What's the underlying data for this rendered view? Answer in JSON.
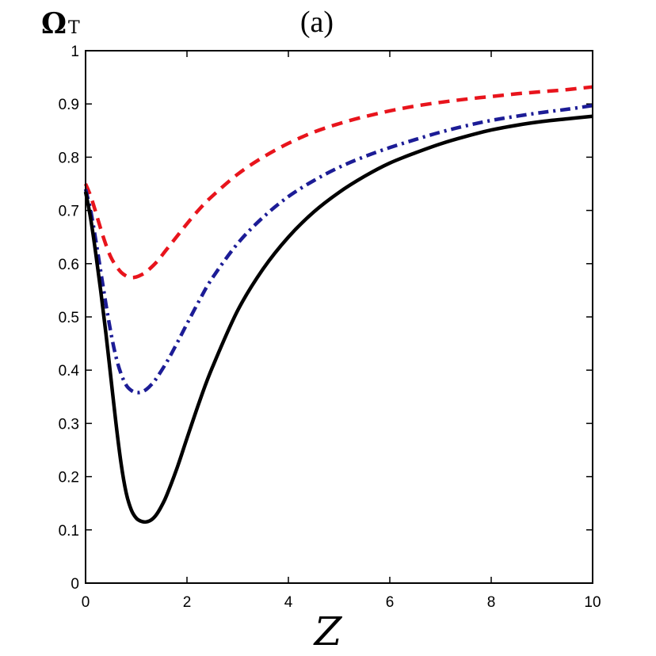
{
  "chart_data": {
    "type": "line",
    "panel_label": "(a)",
    "ylabel": {
      "main": "Ω",
      "sub": "T"
    },
    "xlabel": "Z",
    "xlim": [
      0,
      10
    ],
    "ylim": [
      0,
      1
    ],
    "x_ticks": [
      "0",
      "2",
      "4",
      "6",
      "8",
      "10"
    ],
    "y_ticks": [
      "0",
      "0.1",
      "0.2",
      "0.3",
      "0.4",
      "0.5",
      "0.6",
      "0.7",
      "0.8",
      "0.9",
      "1"
    ],
    "grid": false,
    "series": [
      {
        "color": "#e8141c",
        "style": "dashed",
        "x": [
          0,
          0.1,
          0.2,
          0.3,
          0.4,
          0.5,
          0.6,
          0.7,
          0.8,
          0.9,
          1.0,
          1.1,
          1.2,
          1.4,
          1.6,
          1.8,
          2.0,
          2.25,
          2.5,
          3.0,
          3.5,
          4.0,
          4.5,
          5.0,
          5.5,
          6.0,
          6.5,
          7.0,
          7.5,
          8.0,
          8.5,
          9.0,
          9.5,
          10.0
        ],
        "y": [
          0.75,
          0.727,
          0.697,
          0.665,
          0.636,
          0.612,
          0.596,
          0.584,
          0.577,
          0.574,
          0.575,
          0.579,
          0.585,
          0.603,
          0.627,
          0.651,
          0.675,
          0.703,
          0.727,
          0.768,
          0.8,
          0.826,
          0.847,
          0.863,
          0.876,
          0.887,
          0.896,
          0.903,
          0.909,
          0.914,
          0.919,
          0.923,
          0.927,
          0.932
        ]
      },
      {
        "color": "#1c1c96",
        "style": "dashdot",
        "x": [
          0,
          0.1,
          0.2,
          0.3,
          0.4,
          0.5,
          0.6,
          0.7,
          0.8,
          0.9,
          1.0,
          1.1,
          1.2,
          1.3,
          1.4,
          1.6,
          1.8,
          2.0,
          2.25,
          2.5,
          3.0,
          3.5,
          4.0,
          4.5,
          5.0,
          5.5,
          6.0,
          6.5,
          7.0,
          7.5,
          8.0,
          8.5,
          9.0,
          9.5,
          10.0
        ],
        "y": [
          0.74,
          0.7,
          0.645,
          0.585,
          0.525,
          0.47,
          0.425,
          0.393,
          0.372,
          0.362,
          0.358,
          0.359,
          0.364,
          0.373,
          0.385,
          0.415,
          0.45,
          0.487,
          0.532,
          0.573,
          0.638,
          0.687,
          0.726,
          0.756,
          0.781,
          0.801,
          0.818,
          0.833,
          0.847,
          0.859,
          0.869,
          0.877,
          0.884,
          0.89,
          0.897
        ]
      },
      {
        "color": "#000000",
        "style": "solid",
        "x": [
          0,
          0.1,
          0.2,
          0.3,
          0.4,
          0.5,
          0.6,
          0.7,
          0.8,
          0.9,
          1.0,
          1.1,
          1.2,
          1.3,
          1.4,
          1.5,
          1.6,
          1.8,
          2.0,
          2.25,
          2.5,
          3.0,
          3.5,
          4.0,
          4.5,
          5.0,
          5.5,
          6.0,
          6.5,
          7.0,
          7.5,
          8.0,
          8.5,
          9.0,
          9.5,
          10.0
        ],
        "y": [
          0.735,
          0.685,
          0.62,
          0.548,
          0.47,
          0.385,
          0.3,
          0.225,
          0.17,
          0.138,
          0.122,
          0.116,
          0.115,
          0.119,
          0.129,
          0.145,
          0.165,
          0.215,
          0.272,
          0.342,
          0.405,
          0.512,
          0.59,
          0.65,
          0.697,
          0.734,
          0.764,
          0.789,
          0.808,
          0.825,
          0.839,
          0.851,
          0.86,
          0.867,
          0.872,
          0.877
        ]
      }
    ]
  }
}
